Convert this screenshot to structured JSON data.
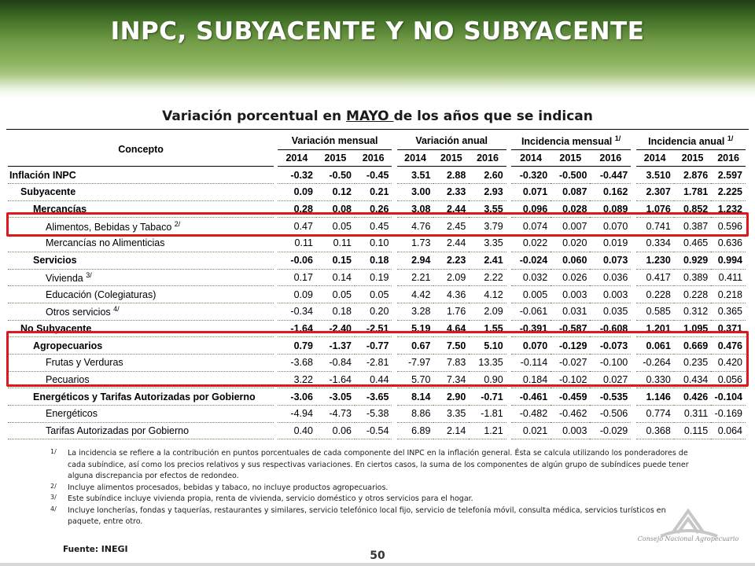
{
  "title": "INPC, SUBYACENTE Y NO SUBYACENTE",
  "subtitle": {
    "prefix": "Variación porcentual en ",
    "month": "MAYO ",
    "suffix": "de los años que se indican"
  },
  "table": {
    "concept_header": "Concepto",
    "groups": [
      {
        "label": "Variación mensual",
        "note": ""
      },
      {
        "label": "Variación anual",
        "note": ""
      },
      {
        "label": "Incidencia mensual",
        "note": "1/"
      },
      {
        "label": "Incidencia anual",
        "note": "1/"
      }
    ],
    "years": [
      "2014",
      "2015",
      "2016"
    ],
    "rows": [
      {
        "label": "Inflación INPC",
        "note": "",
        "values": [
          "-0.32",
          "-0.50",
          "-0.45",
          "3.51",
          "2.88",
          "2.60",
          "-0.320",
          "-0.500",
          "-0.447",
          "3.510",
          "2.876",
          "2.597"
        ]
      },
      {
        "label": "Subyacente",
        "note": "",
        "values": [
          "0.09",
          "0.12",
          "0.21",
          "3.00",
          "2.33",
          "2.93",
          "0.071",
          "0.087",
          "0.162",
          "2.307",
          "1.781",
          "2.225"
        ]
      },
      {
        "label": "Mercancías",
        "note": "",
        "values": [
          "0.28",
          "0.08",
          "0.26",
          "3.08",
          "2.44",
          "3.55",
          "0.096",
          "0.028",
          "0.089",
          "1.076",
          "0.852",
          "1.232"
        ]
      },
      {
        "label": "Alimentos, Bebidas y Tabaco",
        "note": "2/",
        "values": [
          "0.47",
          "0.05",
          "0.45",
          "4.76",
          "2.45",
          "3.79",
          "0.074",
          "0.007",
          "0.070",
          "0.741",
          "0.387",
          "0.596"
        ]
      },
      {
        "label": "Mercancías no Alimenticias",
        "note": "",
        "values": [
          "0.11",
          "0.11",
          "0.10",
          "1.73",
          "2.44",
          "3.35",
          "0.022",
          "0.020",
          "0.019",
          "0.334",
          "0.465",
          "0.636"
        ]
      },
      {
        "label": "Servicios",
        "note": "",
        "values": [
          "-0.06",
          "0.15",
          "0.18",
          "2.94",
          "2.23",
          "2.41",
          "-0.024",
          "0.060",
          "0.073",
          "1.230",
          "0.929",
          "0.994"
        ]
      },
      {
        "label": "Vivienda",
        "note": "3/",
        "values": [
          "0.17",
          "0.14",
          "0.19",
          "2.21",
          "2.09",
          "2.22",
          "0.032",
          "0.026",
          "0.036",
          "0.417",
          "0.389",
          "0.411"
        ]
      },
      {
        "label": "Educación (Colegiaturas)",
        "note": "",
        "values": [
          "0.09",
          "0.05",
          "0.05",
          "4.42",
          "4.36",
          "4.12",
          "0.005",
          "0.003",
          "0.003",
          "0.228",
          "0.228",
          "0.218"
        ]
      },
      {
        "label": "Otros servicios",
        "note": "4/",
        "values": [
          "-0.34",
          "0.18",
          "0.20",
          "3.28",
          "1.76",
          "2.09",
          "-0.061",
          "0.031",
          "0.035",
          "0.585",
          "0.312",
          "0.365"
        ]
      },
      {
        "label": "No Subyacente",
        "note": "",
        "values": [
          "-1.64",
          "-2.40",
          "-2.51",
          "5.19",
          "4.64",
          "1.55",
          "-0.391",
          "-0.587",
          "-0.608",
          "1.201",
          "1.095",
          "0.371"
        ]
      },
      {
        "label": "Agropecuarios",
        "note": "",
        "values": [
          "0.79",
          "-1.37",
          "-0.77",
          "0.67",
          "7.50",
          "5.10",
          "0.070",
          "-0.129",
          "-0.073",
          "0.061",
          "0.669",
          "0.476"
        ]
      },
      {
        "label": "Frutas y Verduras",
        "note": "",
        "values": [
          "-3.68",
          "-0.84",
          "-2.81",
          "-7.97",
          "7.83",
          "13.35",
          "-0.114",
          "-0.027",
          "-0.100",
          "-0.264",
          "0.235",
          "0.420"
        ]
      },
      {
        "label": "Pecuarios",
        "note": "",
        "values": [
          "3.22",
          "-1.64",
          "0.44",
          "5.70",
          "7.34",
          "0.90",
          "0.184",
          "-0.102",
          "0.027",
          "0.330",
          "0.434",
          "0.056"
        ]
      },
      {
        "label": "Energéticos y Tarifas Autorizadas por Gobierno",
        "note": "",
        "values": [
          "-3.06",
          "-3.05",
          "-3.65",
          "8.14",
          "2.90",
          "-0.71",
          "-0.461",
          "-0.459",
          "-0.535",
          "1.146",
          "0.426",
          "-0.104"
        ]
      },
      {
        "label": "Energéticos",
        "note": "",
        "values": [
          "-4.94",
          "-4.73",
          "-5.38",
          "8.86",
          "3.35",
          "-1.81",
          "-0.482",
          "-0.462",
          "-0.506",
          "0.774",
          "0.311",
          "-0.169"
        ]
      },
      {
        "label": "Tarifas Autorizadas por Gobierno",
        "note": "",
        "values": [
          "0.40",
          "0.06",
          "-0.54",
          "6.89",
          "2.14",
          "1.21",
          "0.021",
          "0.003",
          "-0.029",
          "0.368",
          "0.115",
          "0.064"
        ]
      }
    ]
  },
  "notes": [
    {
      "mark": "1/",
      "text": "La incidencia se refiere a la contribución en puntos porcentuales de cada componente del INPC en la inflación general. Ésta se calcula utilizando los ponderadores de cada subíndice, así como los precios relativos y sus respectivas variaciones. En ciertos casos, la suma de los componentes de algún grupo de subíndices puede tener alguna discrepancia por efectos de redondeo."
    },
    {
      "mark": "2/",
      "text": "Incluye alimentos procesados, bebidas y tabaco, no incluye productos agropecuarios."
    },
    {
      "mark": "3/",
      "text": "Este subíndice incluye vivienda propia, renta de vivienda, servicio doméstico y otros servicios para el hogar."
    },
    {
      "mark": "4/",
      "text": "Incluye loncherías, fondas y taquerías, restaurantes y similares, servicio telefónico local fijo, servicio de telefonía móvil, consulta médica, servicios turísticos en paquete, entre otro."
    }
  ],
  "source": {
    "label": "Fuente:",
    "value": "INEGI"
  },
  "page_number": "50",
  "logo": {
    "text": "Consejo Nacional Agropecuario",
    "icon": "cna-logo-icon"
  },
  "colors": {
    "header_dark": "#3f6e26",
    "highlight_box": "#e0171b"
  }
}
